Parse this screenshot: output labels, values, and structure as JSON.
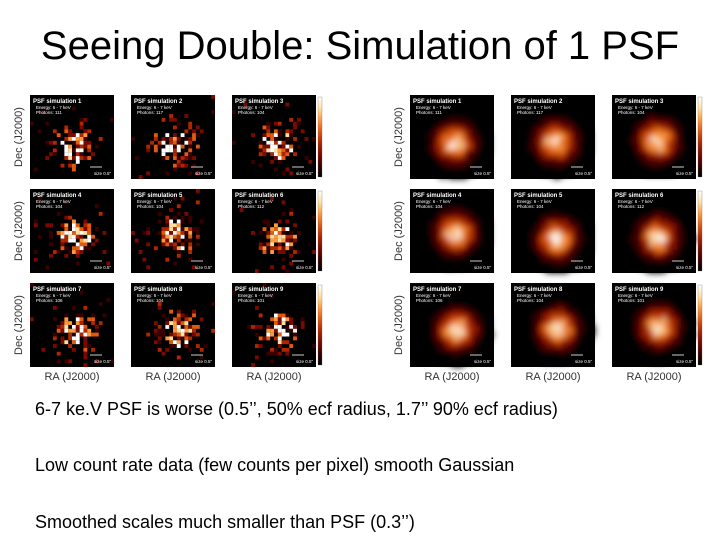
{
  "slide": {
    "title": "Seeing Double: Simulation of 1 PSF",
    "bullets": [
      "6-7 ke.V PSF is worse (0.5’’, 50% ecf radius, 1.7’’ 90% ecf radius)",
      "Low count rate data (few counts per pixel) smooth Gaussian",
      "Smoothed  scales much smaller than PSF (0.3’’)"
    ]
  },
  "figure": {
    "axis_y_label": "Dec (J2000)",
    "axis_x_label": "RA (J2000)",
    "tile_energy": "Energy: 6 - 7 keV",
    "tile_size_label": "size 0.5”",
    "colormap": [
      "#000000",
      "#3a0000",
      "#7a0a00",
      "#b02600",
      "#e05a10",
      "#ff9a3c",
      "#ffe0a0",
      "#ffffff"
    ],
    "panels": [
      {
        "id": "raw",
        "tiles": [
          {
            "title": "PSF simulation 1",
            "photons": "Photons: 111"
          },
          {
            "title": "PSF simulation 2",
            "photons": "Photons: 117"
          },
          {
            "title": "PSF simulation 3",
            "photons": "Photons: 104"
          },
          {
            "title": "PSF simulation 4",
            "photons": "Photons: 104"
          },
          {
            "title": "PSF simulation 5",
            "photons": "Photons: 104"
          },
          {
            "title": "PSF simulation 6",
            "photons": "Photons: 112"
          },
          {
            "title": "PSF simulation 7",
            "photons": "Photons: 106"
          },
          {
            "title": "PSF simulation 8",
            "photons": "Photons: 104"
          },
          {
            "title": "PSF simulation 9",
            "photons": "Photons: 101"
          }
        ]
      },
      {
        "id": "smoothed",
        "tiles": [
          {
            "title": "PSF simulation 1",
            "photons": "Photons: 111"
          },
          {
            "title": "PSF simulation 2",
            "photons": "Photons: 117"
          },
          {
            "title": "PSF simulation 3",
            "photons": "Photons: 104"
          },
          {
            "title": "PSF simulation 4",
            "photons": "Photons: 104"
          },
          {
            "title": "PSF simulation 5",
            "photons": "Photons: 104"
          },
          {
            "title": "PSF simulation 6",
            "photons": "Photons: 112"
          },
          {
            "title": "PSF simulation 7",
            "photons": "Photons: 106"
          },
          {
            "title": "PSF simulation 8",
            "photons": "Photons: 104"
          },
          {
            "title": "PSF simulation 9",
            "photons": "Photons: 101"
          }
        ]
      }
    ]
  }
}
